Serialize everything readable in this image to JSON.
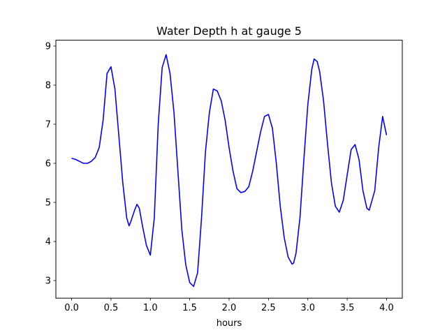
{
  "chart_data": {
    "type": "line",
    "title": "Water Depth h at gauge 5",
    "xlabel": "hours",
    "ylabel": "",
    "xlim": [
      -0.2,
      4.2
    ],
    "ylim": [
      2.55,
      9.15
    ],
    "xticks": [
      0.0,
      0.5,
      1.0,
      1.5,
      2.0,
      2.5,
      3.0,
      3.5,
      4.0
    ],
    "xtick_labels": [
      "0.0",
      "0.5",
      "1.0",
      "1.5",
      "2.0",
      "2.5",
      "3.0",
      "3.5",
      "4.0"
    ],
    "yticks": [
      3,
      4,
      5,
      6,
      7,
      8,
      9
    ],
    "ytick_labels": [
      "3",
      "4",
      "5",
      "6",
      "7",
      "8",
      "9"
    ],
    "grid": false,
    "colors": {
      "line": "#0000ff",
      "axes": "#000000",
      "background": "#ffffff"
    },
    "series": [
      {
        "x": [
          0.0,
          0.05,
          0.1,
          0.15,
          0.2,
          0.25,
          0.3,
          0.35,
          0.4,
          0.45,
          0.48,
          0.5,
          0.55,
          0.6,
          0.65,
          0.7,
          0.73,
          0.75,
          0.8,
          0.83,
          0.86,
          0.9,
          0.95,
          1.0,
          1.05,
          1.1,
          1.15,
          1.2,
          1.25,
          1.3,
          1.35,
          1.4,
          1.45,
          1.5,
          1.55,
          1.6,
          1.65,
          1.7,
          1.75,
          1.8,
          1.85,
          1.9,
          1.95,
          2.0,
          2.05,
          2.1,
          2.15,
          2.2,
          2.25,
          2.3,
          2.35,
          2.4,
          2.45,
          2.5,
          2.55,
          2.6,
          2.65,
          2.7,
          2.75,
          2.8,
          2.82,
          2.85,
          2.9,
          2.95,
          3.0,
          3.05,
          3.08,
          3.12,
          3.15,
          3.2,
          3.25,
          3.3,
          3.35,
          3.4,
          3.45,
          3.5,
          3.55,
          3.6,
          3.65,
          3.7,
          3.75,
          3.78,
          3.85,
          3.9,
          3.95,
          4.0
        ],
        "y": [
          6.13,
          6.1,
          6.05,
          6.0,
          6.0,
          6.05,
          6.15,
          6.4,
          7.1,
          8.3,
          8.4,
          8.47,
          7.9,
          6.7,
          5.5,
          4.6,
          4.4,
          4.5,
          4.8,
          4.95,
          4.85,
          4.4,
          3.9,
          3.65,
          4.6,
          7.0,
          8.45,
          8.78,
          8.3,
          7.3,
          5.8,
          4.3,
          3.4,
          2.95,
          2.85,
          3.2,
          4.6,
          6.3,
          7.3,
          7.9,
          7.85,
          7.6,
          7.1,
          6.4,
          5.8,
          5.35,
          5.25,
          5.28,
          5.4,
          5.8,
          6.3,
          6.8,
          7.2,
          7.25,
          6.9,
          6.0,
          4.9,
          4.1,
          3.6,
          3.42,
          3.45,
          3.7,
          4.6,
          6.1,
          7.5,
          8.4,
          8.67,
          8.6,
          8.35,
          7.6,
          6.5,
          5.5,
          4.9,
          4.75,
          5.05,
          5.7,
          6.35,
          6.48,
          6.1,
          5.3,
          4.85,
          4.8,
          5.3,
          6.4,
          7.2,
          6.72
        ]
      }
    ]
  }
}
